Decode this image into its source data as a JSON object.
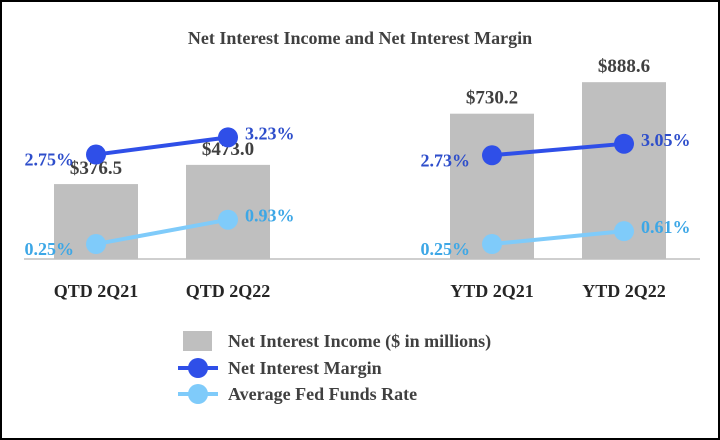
{
  "chart_data": {
    "type": "bar",
    "title": "Net Interest Income and Net Interest Margin",
    "categories": [
      "QTD 2Q21",
      "QTD 2Q22",
      "YTD 2Q21",
      "YTD 2Q22"
    ],
    "groups": [
      [
        "QTD 2Q21",
        "QTD 2Q22"
      ],
      [
        "YTD 2Q21",
        "YTD 2Q22"
      ]
    ],
    "series": [
      {
        "name": "Net Interest Income ($ in millions)",
        "kind": "bar",
        "color": "#BFBFBF",
        "values": [
          376.5,
          473.0,
          730.2,
          888.6
        ],
        "labels": [
          "$376.5",
          "$473.0",
          "$730.2",
          "$888.6"
        ]
      },
      {
        "name": "Net Interest Margin",
        "kind": "line",
        "color": "#2F4FE8",
        "label_color": "#2E4ECB",
        "values": [
          2.75,
          3.23,
          2.73,
          3.05
        ],
        "labels": [
          "2.75%",
          "3.23%",
          "2.73%",
          "3.05%"
        ]
      },
      {
        "name": "Average Fed Funds Rate",
        "kind": "line",
        "color": "#7FCBFA",
        "label_color": "#3DA7E6",
        "values": [
          0.25,
          0.93,
          0.25,
          0.61
        ],
        "labels": [
          "0.25%",
          "0.93%",
          "0.25%",
          "0.61%"
        ]
      }
    ],
    "ylim": [
      0,
      1000
    ],
    "grid": false,
    "legend_position": "bottom-center"
  }
}
